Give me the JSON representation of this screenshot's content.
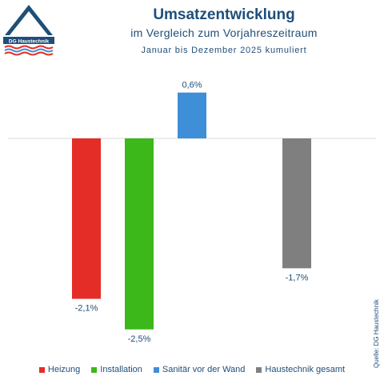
{
  "logo": {
    "text": "DG Haustechnik"
  },
  "source": "Quelle: DG Haustechnik",
  "chart_data": {
    "type": "bar",
    "title": "Umsatzentwicklung",
    "subtitle": "im Vergleich zum Vorjahreszeitraum",
    "period": "Januar bis Dezember 2025 kumuliert",
    "categories": [
      "Heizung",
      "Installation",
      "Sanitär vor der Wand",
      "Haustechnik gesamt"
    ],
    "values": [
      -2.1,
      -2.5,
      0.6,
      -1.7
    ],
    "labels": [
      "-2,1%",
      "-2,5%",
      "0,6%",
      "-1,7%"
    ],
    "colors": [
      "#e32d26",
      "#3cb81a",
      "#3f8ed8",
      "#7f7f7f"
    ],
    "legend_position": "bottom",
    "grid": false,
    "ylim": [
      -2.5,
      0.6
    ]
  }
}
